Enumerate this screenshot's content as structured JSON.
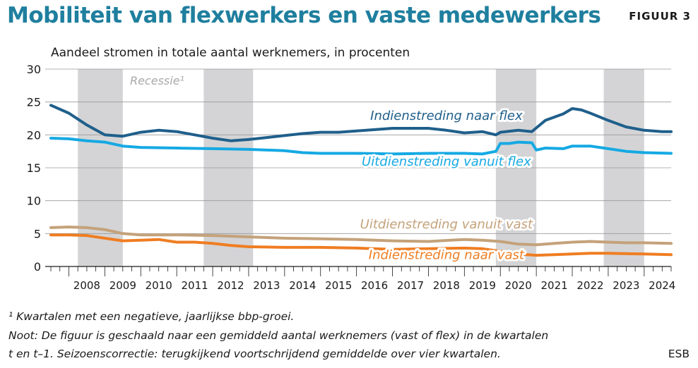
{
  "header": {
    "title": "Mobiliteit van flexwerkers en vaste medewerkers",
    "figure_label": "FIGUUR 3"
  },
  "footer": {
    "footnote": "¹ Kwartalen met een negatieve, jaarlijkse bbp-groei.",
    "note_line1": "Noot: De figuur is geschaald naar een gemiddeld aantal werknemers (vast of flex) in de kwartalen",
    "note_line2": "t en t–1. Seizoenscorrectie: terugkijkend voortschrijdend gemiddelde over vier kwartalen.",
    "source": "ESB"
  },
  "chart_data": {
    "type": "line",
    "title": "Mobiliteit van flexwerkers en vaste medewerkers",
    "ylabel": "Aandeel stromen in totale aantal werknemers, in procenten",
    "xlabel": "",
    "xlim": [
      2007.5,
      2024.75
    ],
    "ylim": [
      0,
      30
    ],
    "yticks": [
      "0",
      "5",
      "10",
      "15",
      "20",
      "25",
      "30"
    ],
    "xticks": [
      "2008",
      "2009",
      "2010",
      "2011",
      "2012",
      "2013",
      "2014",
      "2015",
      "2016",
      "2017",
      "2018",
      "2019",
      "2020",
      "2021",
      "2022",
      "2023",
      "2024"
    ],
    "grid": true,
    "recession_label": "Recessie¹",
    "recessions": [
      [
        2008.25,
        2009.5
      ],
      [
        2011.75,
        2013.125
      ],
      [
        2019.875,
        2021.0
      ],
      [
        2022.875,
        2024.0
      ]
    ],
    "series": [
      {
        "name": "Indienstreding naar flex",
        "color": "#1f5f8b",
        "x": [
          2007.5,
          2008.0,
          2008.5,
          2009.0,
          2009.5,
          2010.0,
          2010.5,
          2011.0,
          2011.5,
          2012.0,
          2012.5,
          2013.0,
          2013.5,
          2014.0,
          2014.5,
          2015.0,
          2015.5,
          2016.0,
          2016.5,
          2017.0,
          2017.5,
          2018.0,
          2018.5,
          2019.0,
          2019.5,
          2019.875,
          2020.0,
          2020.5,
          2020.875,
          2021.25,
          2021.75,
          2022.0,
          2022.25,
          2022.5,
          2023.0,
          2023.5,
          2024.0,
          2024.5,
          2024.75
        ],
        "values": [
          24.5,
          23.3,
          21.5,
          20.0,
          19.8,
          20.4,
          20.7,
          20.5,
          20.0,
          19.5,
          19.1,
          19.3,
          19.6,
          19.9,
          20.2,
          20.4,
          20.4,
          20.6,
          20.8,
          21.0,
          21.0,
          21.0,
          20.7,
          20.3,
          20.5,
          20.0,
          20.4,
          20.7,
          20.5,
          22.2,
          23.2,
          24.0,
          23.8,
          23.3,
          22.2,
          21.2,
          20.7,
          20.5,
          20.5
        ]
      },
      {
        "name": "Uitdienstreding vanuit flex",
        "color": "#15a9e3",
        "x": [
          2007.5,
          2008.0,
          2008.5,
          2009.0,
          2009.5,
          2010.0,
          2011.0,
          2012.0,
          2013.0,
          2014.0,
          2014.5,
          2015.0,
          2016.0,
          2017.0,
          2018.0,
          2019.0,
          2019.5,
          2019.875,
          2020.0,
          2020.25,
          2020.5,
          2020.875,
          2021.0,
          2021.25,
          2021.75,
          2022.0,
          2022.5,
          2023.0,
          2023.5,
          2024.0,
          2024.75
        ],
        "values": [
          19.5,
          19.4,
          19.1,
          18.9,
          18.3,
          18.1,
          18.0,
          17.9,
          17.8,
          17.6,
          17.3,
          17.2,
          17.2,
          17.1,
          17.2,
          17.2,
          17.1,
          17.5,
          18.7,
          18.7,
          18.9,
          18.8,
          17.7,
          18.0,
          17.9,
          18.3,
          18.3,
          17.9,
          17.5,
          17.3,
          17.2
        ]
      },
      {
        "name": "Uitdienstreding vanuit vast",
        "color": "#c4a27a",
        "x": [
          2007.5,
          2008.0,
          2008.5,
          2009.0,
          2009.5,
          2010.0,
          2011.0,
          2012.0,
          2013.0,
          2014.0,
          2015.0,
          2016.0,
          2017.0,
          2018.0,
          2019.0,
          2019.5,
          2020.0,
          2020.5,
          2021.0,
          2021.5,
          2022.0,
          2022.5,
          2023.0,
          2023.5,
          2024.0,
          2024.75
        ],
        "values": [
          5.9,
          6.0,
          5.9,
          5.6,
          5.0,
          4.8,
          4.8,
          4.7,
          4.5,
          4.3,
          4.2,
          4.1,
          3.9,
          3.8,
          4.1,
          4.0,
          3.8,
          3.4,
          3.3,
          3.5,
          3.7,
          3.8,
          3.7,
          3.6,
          3.6,
          3.5
        ]
      },
      {
        "name": "Indienstreding naar vast",
        "color": "#ef7d22",
        "x": [
          2007.5,
          2008.0,
          2008.5,
          2009.0,
          2009.5,
          2010.0,
          2010.5,
          2011.0,
          2011.5,
          2012.0,
          2012.5,
          2013.0,
          2014.0,
          2015.0,
          2016.0,
          2017.0,
          2018.0,
          2019.0,
          2019.5,
          2020.0,
          2020.5,
          2021.0,
          2021.5,
          2022.0,
          2022.5,
          2023.0,
          2024.0,
          2024.75
        ],
        "values": [
          4.8,
          4.8,
          4.7,
          4.3,
          3.9,
          4.0,
          4.1,
          3.7,
          3.7,
          3.5,
          3.2,
          3.0,
          2.9,
          2.9,
          2.8,
          2.6,
          2.7,
          2.8,
          2.7,
          2.3,
          1.9,
          1.7,
          1.8,
          1.9,
          2.0,
          2.0,
          1.9,
          1.8
        ]
      }
    ],
    "annotations": [
      {
        "text": "Indienstreding naar flex",
        "x": 2018.5,
        "y": 22.3,
        "series": 0
      },
      {
        "text": "Uitdienstreding vanuit flex",
        "x": 2018.5,
        "y": 15.3,
        "series": 1
      },
      {
        "text": "Uitdienstreding vanuit vast",
        "x": 2018.5,
        "y": 5.8,
        "series": 2
      },
      {
        "text": "Indienstreding naar vast",
        "x": 2018.5,
        "y": 1.1,
        "series": 3
      }
    ]
  }
}
